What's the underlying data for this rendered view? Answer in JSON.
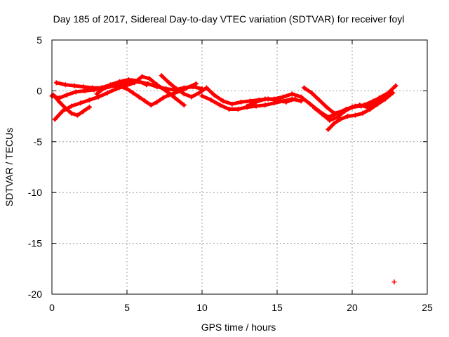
{
  "chart_data": {
    "type": "scatter",
    "title": "Day 185 of 2017, Sidereal Day-to-day VTEC variation (SDTVAR) for receiver foyl",
    "xlabel": "GPS time / hours",
    "ylabel": "SDTVAR / TECUs",
    "xlim": [
      0,
      25
    ],
    "ylim": [
      -20,
      5
    ],
    "xticks": [
      0,
      5,
      10,
      15,
      20,
      25
    ],
    "yticks": [
      5,
      0,
      -5,
      -10,
      -15,
      -20
    ],
    "xtick_labels": [
      "0",
      "5",
      "10",
      "15",
      "20",
      "25"
    ],
    "ytick_labels": [
      "5",
      "0",
      "-5",
      "-10",
      "-15",
      "-20"
    ],
    "grid": true,
    "marker": "+",
    "color": "#ff0000",
    "tracks": [
      {
        "x": [
          0.0,
          0.5,
          1.0,
          1.6,
          2.2,
          2.8,
          3.4,
          4.0,
          4.6,
          5.2,
          5.8,
          6.4,
          7.0,
          7.6,
          8.2,
          8.8,
          9.4,
          10.0
        ],
        "y": [
          -0.5,
          -0.7,
          -0.4,
          -0.1,
          0.0,
          0.1,
          0.3,
          0.5,
          0.7,
          0.8,
          0.9,
          0.7,
          0.4,
          0.2,
          0.1,
          0.3,
          0.4,
          0.2
        ]
      },
      {
        "x": [
          0.2,
          0.7,
          1.3,
          1.9,
          2.5,
          3.1,
          3.7,
          4.3,
          4.9,
          5.5,
          6.0,
          6.5,
          7.0,
          7.6,
          8.2,
          8.8
        ],
        "y": [
          -2.8,
          -2.0,
          -1.5,
          -1.2,
          -0.9,
          -0.6,
          -0.2,
          0.2,
          0.5,
          0.8,
          1.4,
          1.2,
          0.6,
          0.0,
          -0.7,
          -1.4
        ]
      },
      {
        "x": [
          0.3,
          0.9,
          1.5,
          2.1,
          2.7,
          3.3,
          3.9,
          4.5,
          5.1,
          5.7,
          6.3
        ],
        "y": [
          0.8,
          0.6,
          0.5,
          0.4,
          0.3,
          0.3,
          0.6,
          0.9,
          1.1,
          1.0,
          0.6
        ]
      },
      {
        "x": [
          3.0,
          3.4,
          3.8,
          4.2,
          4.6,
          5.0,
          5.4,
          5.8,
          6.2,
          6.6,
          7.0,
          7.4,
          7.8,
          8.2,
          8.6,
          9.0,
          9.6
        ],
        "y": [
          -0.3,
          0.2,
          0.4,
          0.5,
          0.4,
          0.2,
          -0.2,
          -0.6,
          -1.0,
          -1.4,
          -1.1,
          -0.7,
          -0.4,
          -0.2,
          0.0,
          0.3,
          0.7
        ]
      },
      {
        "x": [
          0.1,
          0.5,
          0.9,
          1.3,
          1.7,
          2.1,
          2.5
        ],
        "y": [
          -0.4,
          -1.1,
          -1.7,
          -2.2,
          -2.4,
          -2.0,
          -1.6
        ]
      },
      {
        "x": [
          7.3,
          7.8,
          8.3,
          8.8,
          9.3,
          9.8,
          10.3,
          10.8,
          11.4,
          12.0,
          12.6,
          13.2,
          13.8,
          14.4,
          15.0,
          15.6,
          16.2
        ],
        "y": [
          1.5,
          0.8,
          0.2,
          -0.3,
          -0.6,
          -0.2,
          0.3,
          -0.4,
          -1.0,
          -1.3,
          -1.1,
          -1.0,
          -0.9,
          -0.8,
          -0.9,
          -1.1,
          -0.8
        ]
      },
      {
        "x": [
          10.0,
          10.6,
          11.2,
          11.8,
          12.4,
          13.0,
          13.6,
          14.2,
          14.8,
          15.4,
          16.0,
          16.6
        ],
        "y": [
          -0.5,
          -0.9,
          -1.4,
          -1.8,
          -1.8,
          -1.6,
          -1.5,
          -1.4,
          -1.2,
          -1.0,
          -0.8,
          -1.0
        ]
      },
      {
        "x": [
          13.0,
          13.6,
          14.2,
          14.8,
          15.4,
          16.0,
          16.6,
          17.2,
          17.8,
          18.4,
          19.0,
          19.6,
          20.2,
          20.8,
          21.4,
          22.0,
          22.6
        ],
        "y": [
          -1.5,
          -1.1,
          -0.8,
          -0.8,
          -0.6,
          -0.3,
          -0.6,
          -1.3,
          -2.0,
          -2.6,
          -2.2,
          -1.8,
          -1.5,
          -1.4,
          -1.0,
          -0.6,
          -0.1
        ]
      },
      {
        "x": [
          16.8,
          17.3,
          17.8,
          18.3,
          18.8,
          19.4,
          20.0,
          20.6,
          21.2,
          21.8,
          22.4,
          22.9
        ],
        "y": [
          0.3,
          -0.2,
          -0.9,
          -1.6,
          -2.2,
          -2.0,
          -1.6,
          -1.5,
          -1.2,
          -0.7,
          -0.2,
          0.5
        ]
      },
      {
        "x": [
          18.4,
          18.8,
          19.2,
          19.7,
          20.2,
          20.7,
          21.2,
          21.7,
          22.2,
          22.7
        ],
        "y": [
          -3.8,
          -3.2,
          -2.8,
          -2.5,
          -2.4,
          -2.2,
          -1.8,
          -1.3,
          -0.8,
          -0.2
        ]
      },
      {
        "x": [
          17.5,
          18.0,
          18.5,
          19.0,
          19.5,
          20.0,
          20.5,
          21.0,
          21.5,
          22.0
        ],
        "y": [
          -1.7,
          -2.3,
          -2.9,
          -2.6,
          -2.0,
          -1.6,
          -1.4,
          -1.6,
          -1.3,
          -0.9
        ]
      }
    ],
    "outliers": [
      {
        "x": 22.8,
        "y": -18.8
      }
    ]
  }
}
